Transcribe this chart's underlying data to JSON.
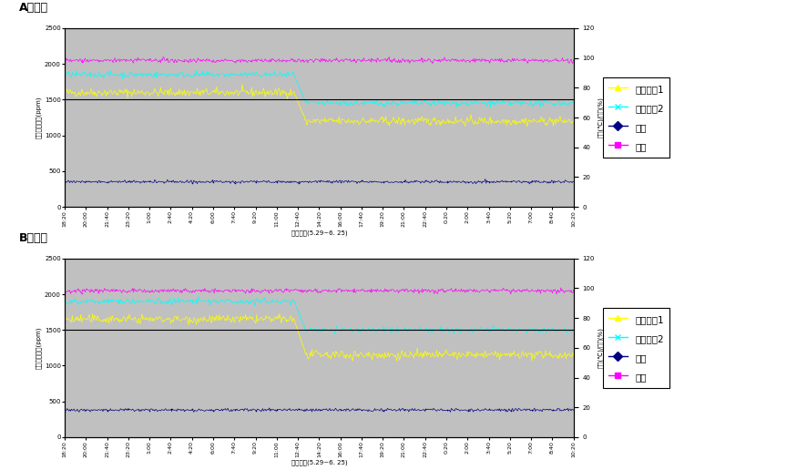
{
  "title_A": "A재배사",
  "title_B": "B재배사",
  "xlabel": "조사기간(5.29~6. 25)",
  "ylabel_left": "탄산가스농도(ppm)",
  "ylabel_right": "온도(℃)/습도(%)",
  "ylim_left": [
    0,
    2500
  ],
  "ylim_right": [
    0,
    120
  ],
  "yticks_left": [
    0,
    500,
    1000,
    1500,
    2000,
    2500
  ],
  "yticks_right": [
    0,
    20,
    40,
    60,
    80,
    100,
    120
  ],
  "xtick_labels": [
    "18:20",
    "20:00",
    "21:40",
    "23:20",
    "1:00",
    "2:40",
    "4:20",
    "6:00",
    "7:40",
    "9:20",
    "11:00",
    "12:40",
    "14:20",
    "16:00",
    "17:40",
    "19:20",
    "21:00",
    "22:40",
    "0:20",
    "2:00",
    "3:40",
    "5:20",
    "7:00",
    "8:40",
    "10:20"
  ],
  "n_points": 600,
  "drop_point": 270,
  "colors": {
    "tansan1": "#FFFF00",
    "tansan2": "#00FFFF",
    "ondo": "#000080",
    "supdo": "#FF00FF"
  },
  "legend_labels": [
    "탄산가스1",
    "탄산가스2",
    "온도",
    "습도"
  ],
  "bg_color": "#C0C0C0",
  "fig_bg": "#FFFFFF",
  "hline_val": 1500,
  "tansan1_A_before": 1600,
  "tansan1_A_after": 1200,
  "tansan2_A_before": 1850,
  "tansan2_A_after": 1450,
  "tansan1_B_before": 1650,
  "tansan1_B_after": 1150,
  "tansan2_B_before": 1900,
  "tansan2_B_after": 1500,
  "supdo_level": 2050,
  "ondo_A_level": 350,
  "ondo_B_level": 380,
  "noise_tansan": 30,
  "noise_ondo": 10,
  "noise_supdo": 15
}
